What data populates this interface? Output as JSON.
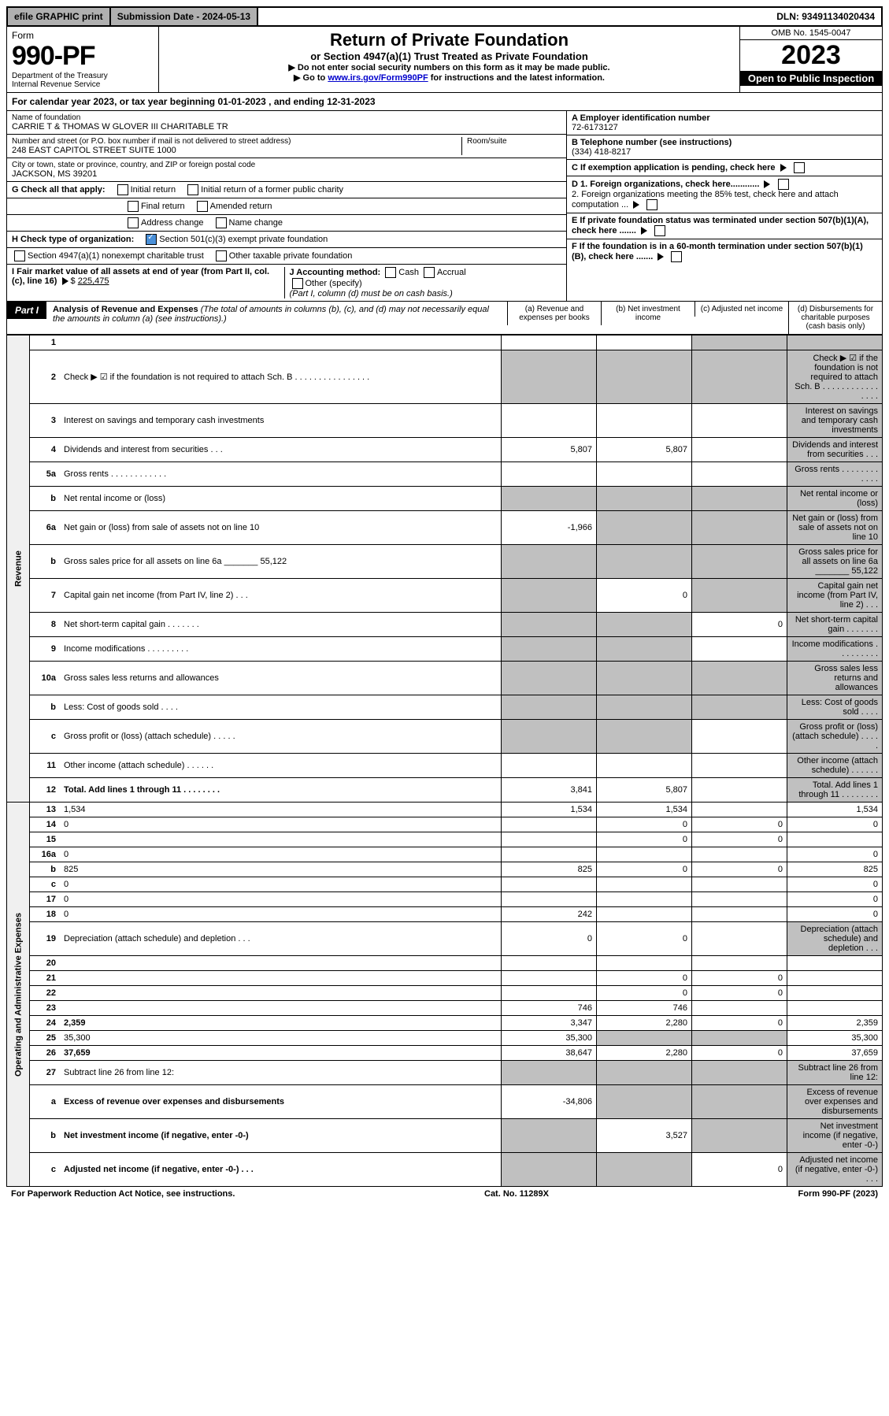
{
  "top": {
    "efile": "efile GRAPHIC print",
    "sub_date_label": "Submission Date - 2024-05-13",
    "dln": "DLN: 93491134020434"
  },
  "header": {
    "form_word": "Form",
    "form_no": "990-PF",
    "dept": "Department of the Treasury",
    "irs": "Internal Revenue Service",
    "title": "Return of Private Foundation",
    "subtitle": "or Section 4947(a)(1) Trust Treated as Private Foundation",
    "instr1": "▶ Do not enter social security numbers on this form as it may be made public.",
    "instr2_pre": "▶ Go to ",
    "instr2_link": "www.irs.gov/Form990PF",
    "instr2_post": " for instructions and the latest information.",
    "omb": "OMB No. 1545-0047",
    "year": "2023",
    "open": "Open to Public Inspection"
  },
  "calendar": "For calendar year 2023, or tax year beginning 01-01-2023                      , and ending 12-31-2023",
  "org": {
    "name_label": "Name of foundation",
    "name": "CARRIE T & THOMAS W GLOVER III CHARITABLE TR",
    "addr_label": "Number and street (or P.O. box number if mail is not delivered to street address)",
    "room_label": "Room/suite",
    "addr": "248 EAST CAPITOL STREET SUITE 1000",
    "city_label": "City or town, state or province, country, and ZIP or foreign postal code",
    "city": "JACKSON, MS  39201",
    "ein_label": "A Employer identification number",
    "ein": "72-6173127",
    "phone_label": "B Telephone number (see instructions)",
    "phone": "(334) 418-8217",
    "c_label": "C If exemption application is pending, check here",
    "d1": "D 1. Foreign organizations, check here............",
    "d2": "2. Foreign organizations meeting the 85% test, check here and attach computation ...",
    "e_label": "E If private foundation status was terminated under section 507(b)(1)(A), check here .......",
    "f_label": "F If the foundation is in a 60-month termination under section 507(b)(1)(B), check here .......",
    "g_label": "G Check all that apply:",
    "g_opts": [
      "Initial return",
      "Initial return of a former public charity",
      "Final return",
      "Amended return",
      "Address change",
      "Name change"
    ],
    "h_label": "H Check type of organization:",
    "h_opt1": "Section 501(c)(3) exempt private foundation",
    "h_opt2": "Section 4947(a)(1) nonexempt charitable trust",
    "h_opt3": "Other taxable private foundation",
    "i_label": "I Fair market value of all assets at end of year (from Part II, col. (c), line 16)",
    "i_val": "225,475",
    "j_label": "J Accounting method:",
    "j_cash": "Cash",
    "j_accrual": "Accrual",
    "j_other": "Other (specify)",
    "j_note": "(Part I, column (d) must be on cash basis.)"
  },
  "part1": {
    "label": "Part I",
    "title": "Analysis of Revenue and Expenses",
    "title_note": "(The total of amounts in columns (b), (c), and (d) may not necessarily equal the amounts in column (a) (see instructions).)",
    "col_a": "(a) Revenue and expenses per books",
    "col_b": "(b) Net investment income",
    "col_c": "(c) Adjusted net income",
    "col_d": "(d) Disbursements for charitable purposes (cash basis only)"
  },
  "sections": {
    "revenue": "Revenue",
    "expenses": "Operating and Administrative Expenses"
  },
  "rows": [
    {
      "n": "1",
      "d": "",
      "a": "",
      "b": "",
      "c": "",
      "shade_c": true,
      "shade_d": true
    },
    {
      "n": "2",
      "d": "Check ▶ ☑ if the foundation is not required to attach Sch. B   . . . . . . . . . . . . . . . .",
      "shade_a": true,
      "shade_b": true,
      "shade_c": true,
      "shade_d": true
    },
    {
      "n": "3",
      "d": "Interest on savings and temporary cash investments",
      "a": "",
      "b": "",
      "c": "",
      "shade_d": true
    },
    {
      "n": "4",
      "d": "Dividends and interest from securities   . . .",
      "a": "5,807",
      "b": "5,807",
      "c": "",
      "shade_d": true
    },
    {
      "n": "5a",
      "d": "Gross rents   . . . . . . . . . . . .",
      "a": "",
      "b": "",
      "c": "",
      "shade_d": true
    },
    {
      "n": "b",
      "d": "Net rental income or (loss)",
      "shade_a": true,
      "shade_b": true,
      "shade_c": true,
      "shade_d": true
    },
    {
      "n": "6a",
      "d": "Net gain or (loss) from sale of assets not on line 10",
      "a": "-1,966",
      "shade_b": true,
      "shade_c": true,
      "shade_d": true
    },
    {
      "n": "b",
      "d": "Gross sales price for all assets on line 6a _______ 55,122",
      "shade_a": true,
      "shade_b": true,
      "shade_c": true,
      "shade_d": true
    },
    {
      "n": "7",
      "d": "Capital gain net income (from Part IV, line 2)   . . .",
      "shade_a": true,
      "b": "0",
      "shade_c": true,
      "shade_d": true
    },
    {
      "n": "8",
      "d": "Net short-term capital gain  . . . . . . .",
      "shade_a": true,
      "shade_b": true,
      "c": "0",
      "shade_d": true
    },
    {
      "n": "9",
      "d": "Income modifications  . . . . . . . . .",
      "shade_a": true,
      "shade_b": true,
      "c": "",
      "shade_d": true
    },
    {
      "n": "10a",
      "d": "Gross sales less returns and allowances",
      "shade_a": true,
      "shade_b": true,
      "shade_c": true,
      "shade_d": true
    },
    {
      "n": "b",
      "d": "Less: Cost of goods sold   . . . .",
      "shade_a": true,
      "shade_b": true,
      "shade_c": true,
      "shade_d": true
    },
    {
      "n": "c",
      "d": "Gross profit or (loss) (attach schedule)   . . . . .",
      "shade_a": true,
      "shade_b": true,
      "c": "",
      "shade_d": true
    },
    {
      "n": "11",
      "d": "Other income (attach schedule)   . . . . . .",
      "a": "",
      "b": "",
      "c": "",
      "shade_d": true
    },
    {
      "n": "12",
      "d": "Total. Add lines 1 through 11  . . . . . . . .",
      "bold": true,
      "a": "3,841",
      "b": "5,807",
      "c": "",
      "shade_d": true
    },
    {
      "n": "13",
      "d": "1,534",
      "a": "1,534",
      "b": "1,534",
      "c": ""
    },
    {
      "n": "14",
      "d": "0",
      "a": "",
      "b": "0",
      "c": "0"
    },
    {
      "n": "15",
      "d": "",
      "a": "",
      "b": "0",
      "c": "0"
    },
    {
      "n": "16a",
      "d": "0",
      "a": "",
      "b": "",
      "c": ""
    },
    {
      "n": "b",
      "d": "825",
      "a": "825",
      "b": "0",
      "c": "0"
    },
    {
      "n": "c",
      "d": "0",
      "a": "",
      "b": "",
      "c": ""
    },
    {
      "n": "17",
      "d": "0",
      "a": "",
      "b": "",
      "c": ""
    },
    {
      "n": "18",
      "d": "0",
      "a": "242",
      "b": "",
      "c": ""
    },
    {
      "n": "19",
      "d": "Depreciation (attach schedule) and depletion   . . .",
      "a": "0",
      "b": "0",
      "c": "",
      "shade_d": true
    },
    {
      "n": "20",
      "d": "",
      "a": "",
      "b": "",
      "c": ""
    },
    {
      "n": "21",
      "d": "",
      "a": "",
      "b": "0",
      "c": "0"
    },
    {
      "n": "22",
      "d": "",
      "a": "",
      "b": "0",
      "c": "0"
    },
    {
      "n": "23",
      "d": "",
      "a": "746",
      "b": "746",
      "c": ""
    },
    {
      "n": "24",
      "d": "2,359",
      "bold": true,
      "a": "3,347",
      "b": "2,280",
      "c": "0"
    },
    {
      "n": "25",
      "d": "35,300",
      "a": "35,300",
      "shade_b": true,
      "shade_c": true
    },
    {
      "n": "26",
      "d": "37,659",
      "bold": true,
      "a": "38,647",
      "b": "2,280",
      "c": "0"
    },
    {
      "n": "27",
      "d": "Subtract line 26 from line 12:",
      "shade_a": true,
      "shade_b": true,
      "shade_c": true,
      "shade_d": true
    },
    {
      "n": "a",
      "d": "Excess of revenue over expenses and disbursements",
      "bold": true,
      "a": "-34,806",
      "shade_b": true,
      "shade_c": true,
      "shade_d": true
    },
    {
      "n": "b",
      "d": "Net investment income (if negative, enter -0-)",
      "bold": true,
      "shade_a": true,
      "b": "3,527",
      "shade_c": true,
      "shade_d": true
    },
    {
      "n": "c",
      "d": "Adjusted net income (if negative, enter -0-)   . . .",
      "bold": true,
      "shade_a": true,
      "shade_b": true,
      "c": "0",
      "shade_d": true
    }
  ],
  "footer": {
    "left": "For Paperwork Reduction Act Notice, see instructions.",
    "mid": "Cat. No. 11289X",
    "right": "Form 990-PF (2023)"
  }
}
